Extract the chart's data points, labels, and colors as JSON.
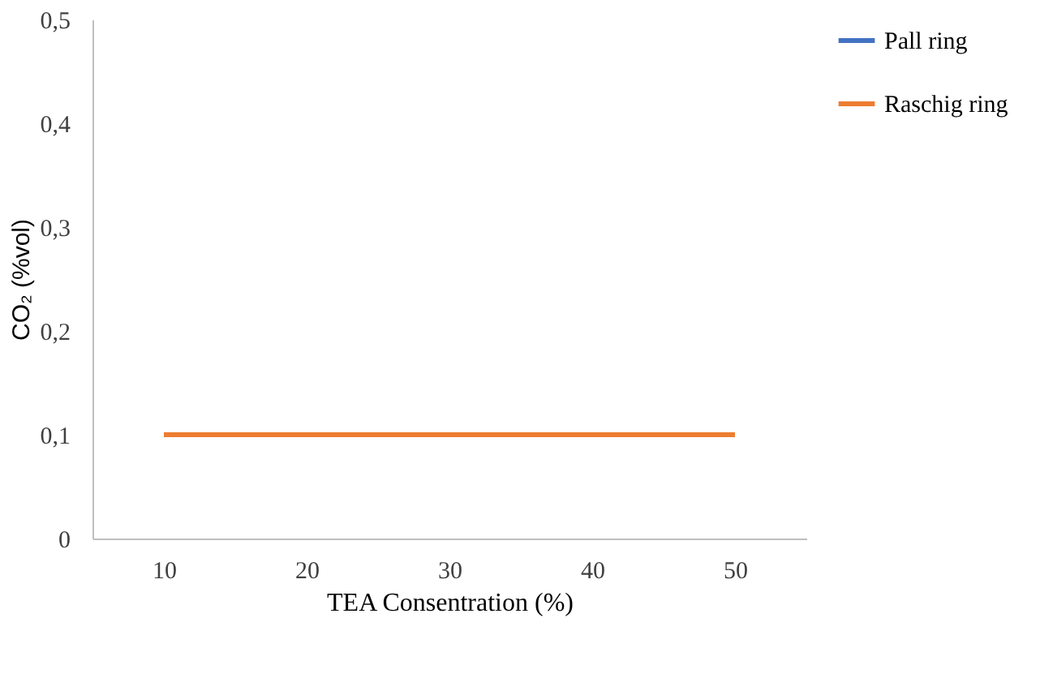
{
  "chart_data": {
    "type": "line",
    "xlabel": "TEA Consentration (%)",
    "ylabel": "CO₂ (%vol)",
    "categories": [
      "10",
      "20",
      "30",
      "40",
      "50"
    ],
    "series": [
      {
        "name": "Pall ring",
        "color": "#4472c4",
        "values": [
          null,
          null,
          null,
          null,
          null
        ]
      },
      {
        "name": "Raschig ring",
        "color": "#ed7d31",
        "values": [
          0.1,
          0.1,
          0.1,
          0.1,
          0.1
        ]
      }
    ],
    "ylim": [
      0,
      0.5
    ],
    "yticks": [
      0,
      {
        "value": 0.1,
        "label": "0,1"
      },
      {
        "value": 0.2,
        "label": "0,2"
      },
      {
        "value": 0.3,
        "label": "0,3"
      },
      {
        "value": 0.4,
        "label": "0,4"
      },
      {
        "value": 0.5,
        "label": "0,5"
      }
    ],
    "grid": false,
    "legend": "right",
    "marker": "none",
    "line_style": "solid"
  }
}
